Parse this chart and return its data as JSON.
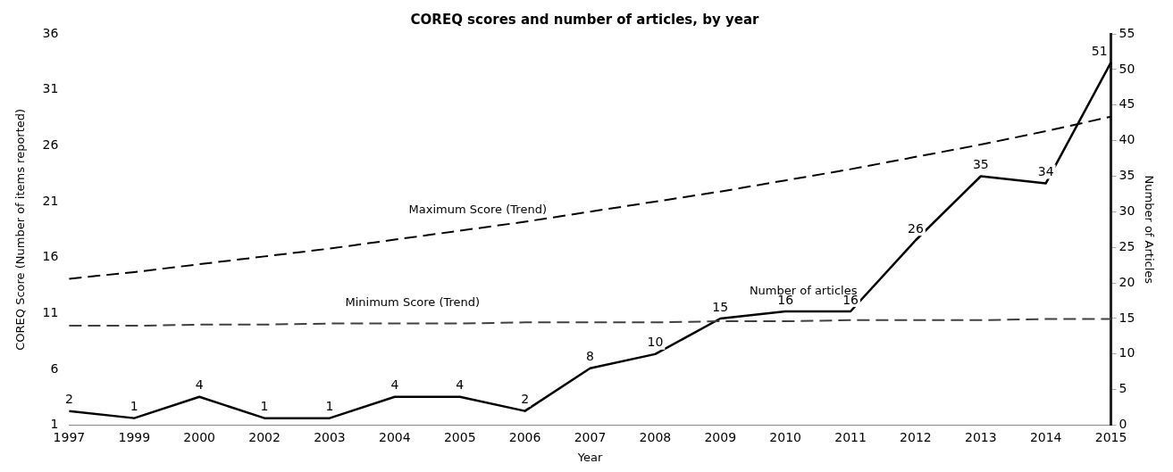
{
  "chart_data": {
    "type": "line",
    "title": "COREQ scores and number of articles, by year",
    "xlabel": "Year",
    "ylabel": "COREQ Score (Number of items reported)",
    "y2label": "Number of Articles",
    "categories": [
      "1997",
      "1999",
      "2000",
      "2002",
      "2003",
      "2004",
      "2005",
      "2006",
      "2007",
      "2008",
      "2009",
      "2010",
      "2011",
      "2012",
      "2013",
      "2014",
      "2015"
    ],
    "series": [
      {
        "name": "Maximum Score (Trend)",
        "color": "#000000",
        "line_style": "dashed",
        "values": [
          14.1,
          14.7,
          15.4,
          16.1,
          16.8,
          17.6,
          18.4,
          19.2,
          20.1,
          21.0,
          21.9,
          22.9,
          23.9,
          25.0,
          26.1,
          27.3,
          28.6
        ]
      },
      {
        "name": "Minimum Score (Trend)",
        "color": "#404040",
        "line_style": "dashed",
        "values": [
          9.9,
          9.9,
          10.0,
          10.0,
          10.1,
          10.1,
          10.1,
          10.2,
          10.2,
          10.2,
          10.3,
          10.3,
          10.4,
          10.4,
          10.4,
          10.5,
          10.5
        ]
      },
      {
        "name": "Number of articles",
        "color": "#000000",
        "line_style": "solid",
        "axis": "y2",
        "values": [
          2,
          1,
          4,
          1,
          1,
          4,
          4,
          2,
          8,
          10,
          15,
          16,
          16,
          26,
          35,
          34,
          51
        ],
        "value_labels": [
          "2",
          "1",
          "4",
          "1",
          "1",
          "4",
          "4",
          "2",
          "8",
          "10",
          "15",
          "16",
          "16",
          "26",
          "35",
          "34",
          "51"
        ]
      }
    ],
    "ylim": [
      1,
      36
    ],
    "yticks": [
      1,
      6,
      11,
      16,
      21,
      26,
      31,
      36
    ],
    "y2lim": [
      0,
      55
    ],
    "y2ticks": [
      0,
      5,
      10,
      15,
      20,
      25,
      30,
      35,
      40,
      45,
      50,
      55
    ],
    "grid": false,
    "legend": false,
    "marker": "none"
  }
}
